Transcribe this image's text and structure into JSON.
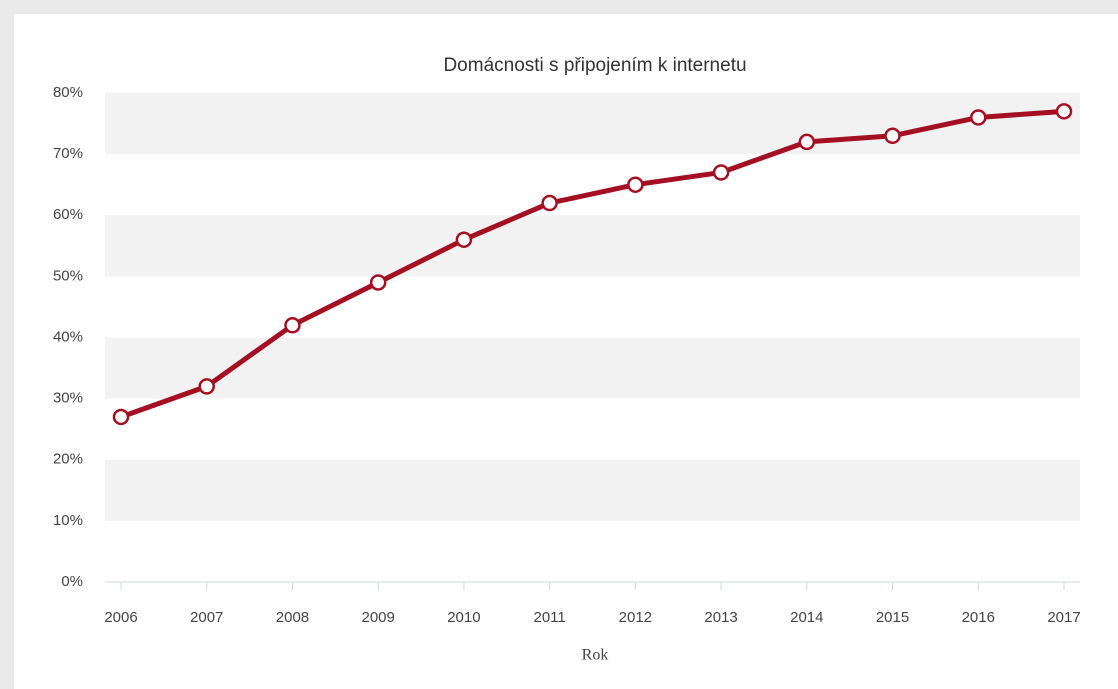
{
  "chart_data": {
    "type": "line",
    "title": "Domácnosti s připojením k internetu",
    "x_label": "Rok",
    "categories": [
      "2006",
      "2007",
      "2008",
      "2009",
      "2010",
      "2011",
      "2012",
      "2013",
      "2014",
      "2015",
      "2016",
      "2017"
    ],
    "series": [
      {
        "color": "#a50f22",
        "values": [
          27,
          32,
          42,
          49,
          56,
          62,
          65,
          67,
          72,
          73,
          76,
          77
        ]
      }
    ],
    "ylim": [
      0,
      80
    ],
    "yticks": [
      {
        "value": 0,
        "label": "0%"
      },
      {
        "value": 10,
        "label": "10%"
      },
      {
        "value": 20,
        "label": "20%"
      },
      {
        "value": 30,
        "label": "30%"
      },
      {
        "value": 40,
        "label": "40%"
      },
      {
        "value": 50,
        "label": "50%"
      },
      {
        "value": 60,
        "label": "60%"
      },
      {
        "value": 70,
        "label": "70%"
      },
      {
        "value": 80,
        "label": "80%"
      }
    ],
    "grid": true
  }
}
